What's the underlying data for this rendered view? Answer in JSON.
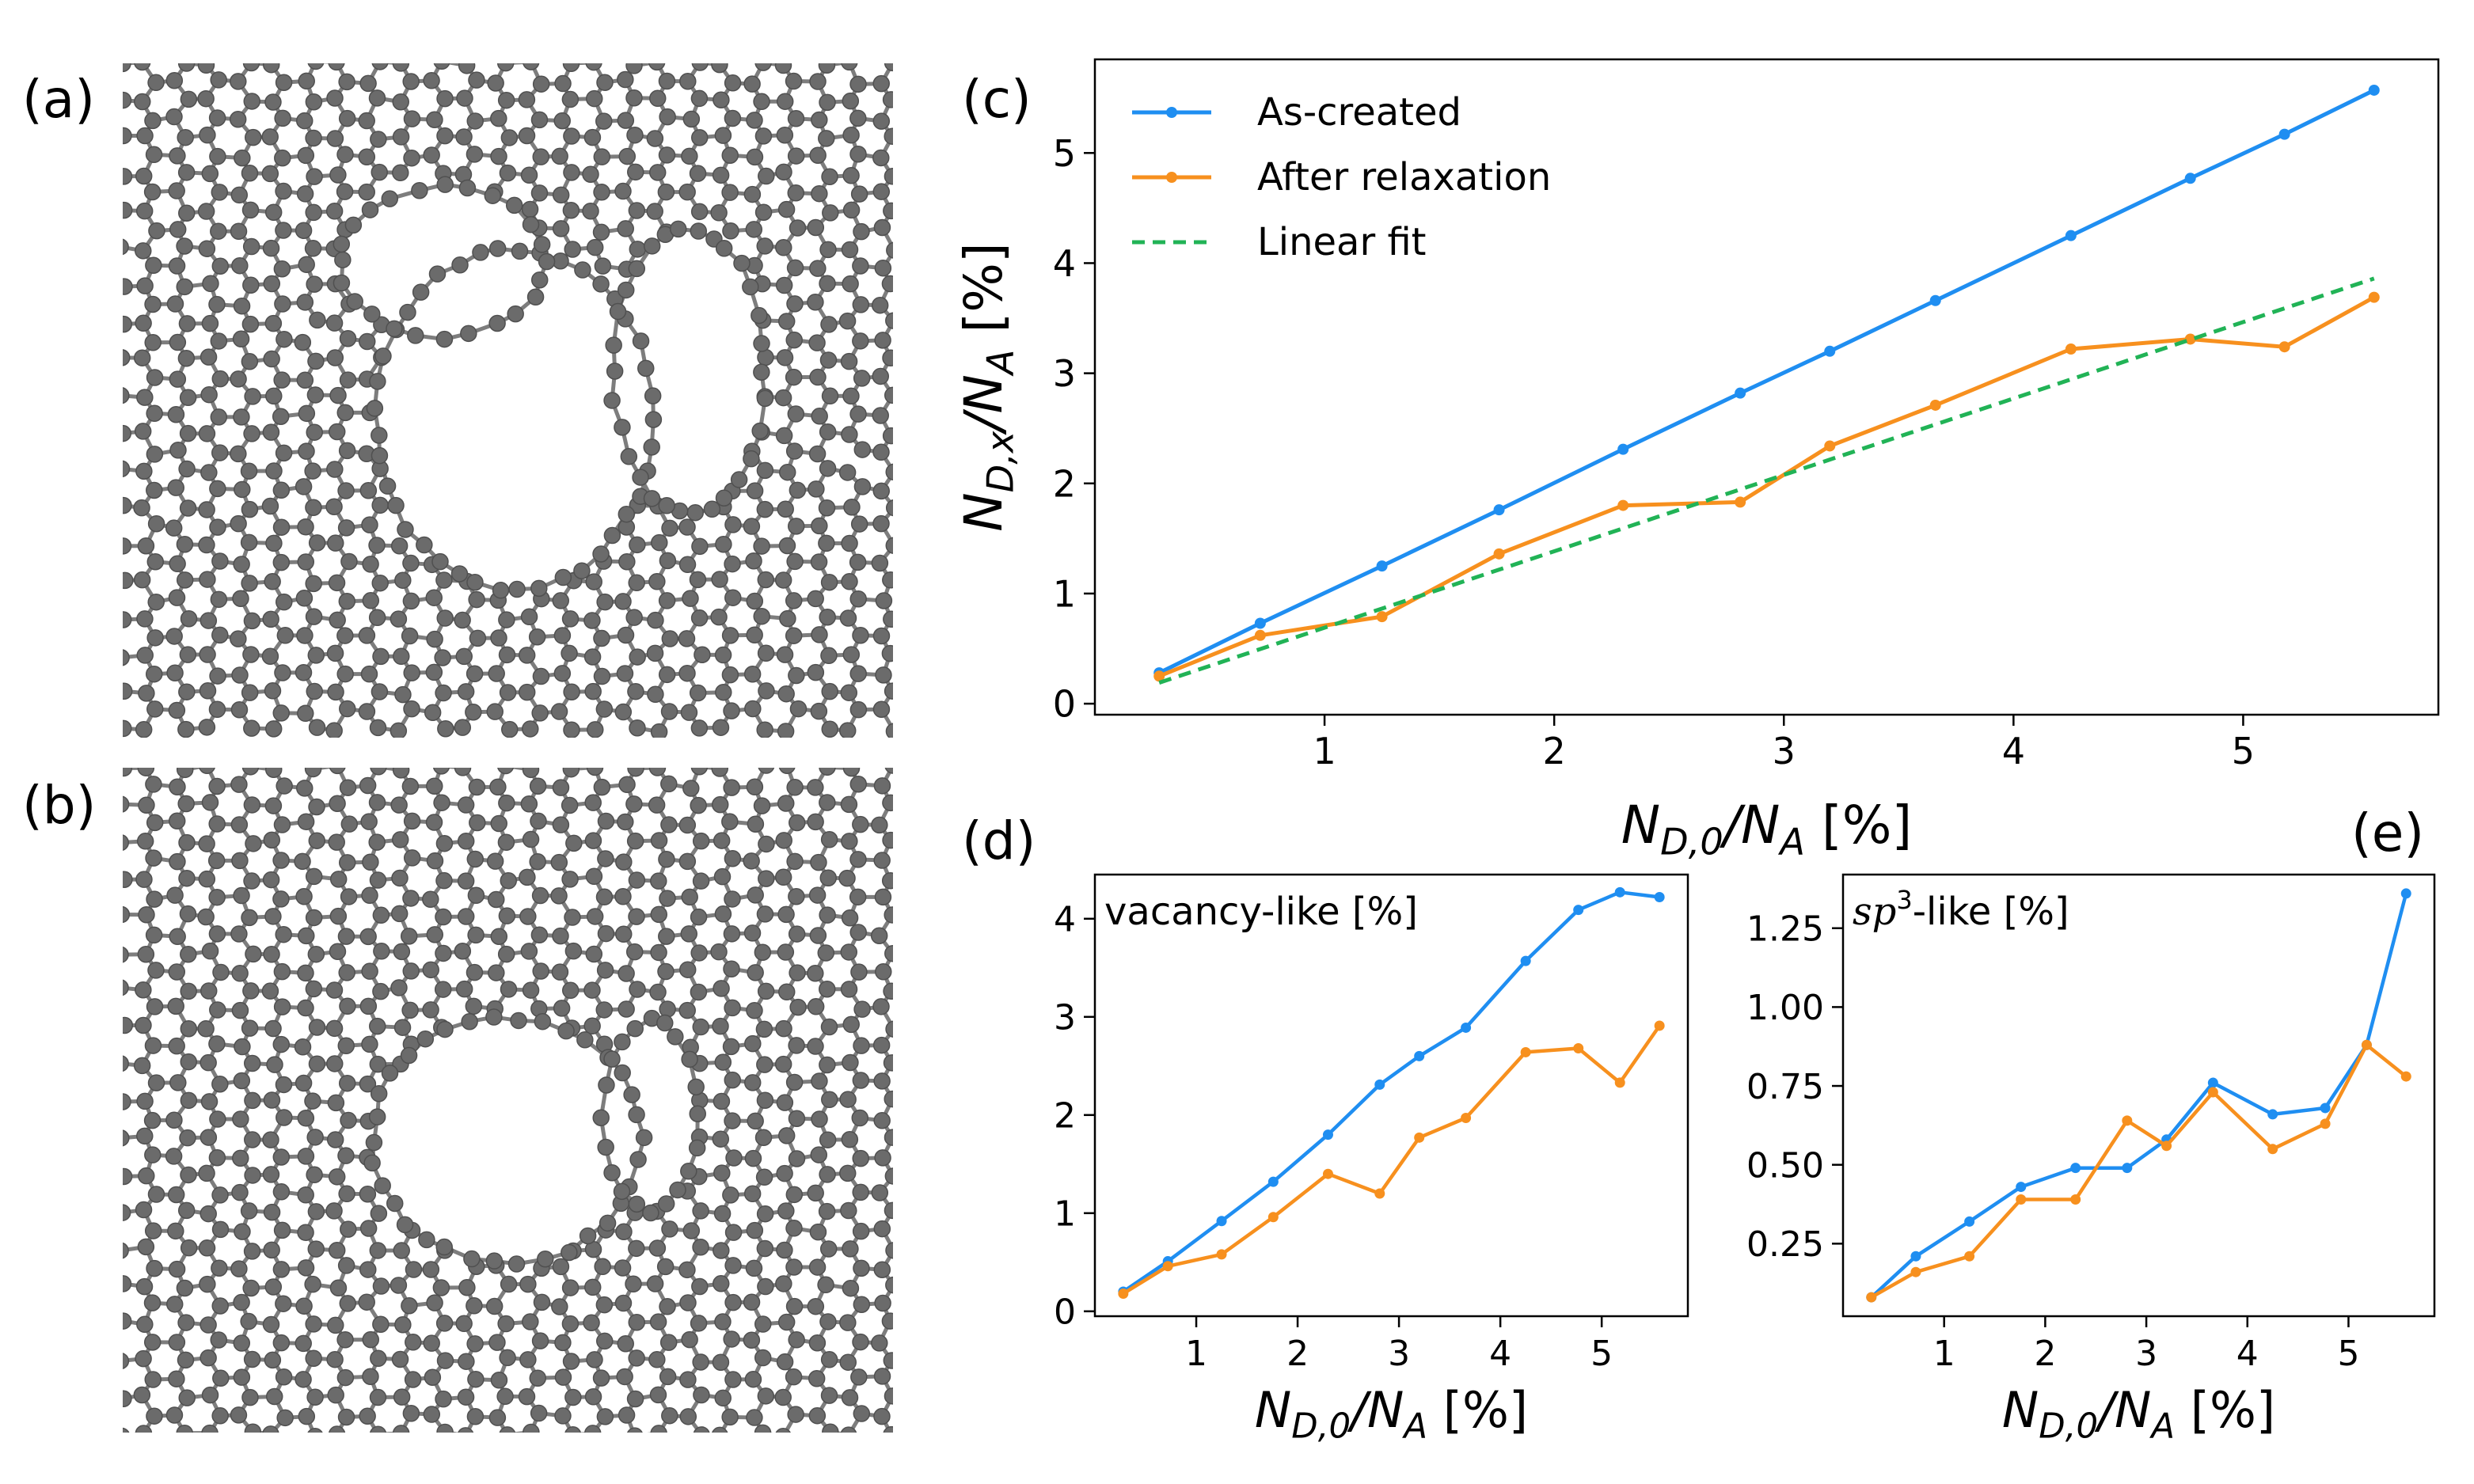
{
  "panels": {
    "a": {
      "label": "(a)"
    },
    "b": {
      "label": "(b)"
    },
    "c": {
      "label": "(c)"
    },
    "d": {
      "label": "(d)"
    },
    "e": {
      "label": "(e)"
    }
  },
  "colors": {
    "as_created": "#1f8ef1",
    "after_relaxation": "#f7901e",
    "linear_fit": "#21b356",
    "atom": "#6b6b6b",
    "bond": "#7d7d7d"
  },
  "chart_data": [
    {
      "id": "c",
      "type": "line",
      "xlabel": {
        "base": "N",
        "sub": "D,0",
        "over": "/N",
        "sub2": "A",
        "unit": " [%]"
      },
      "ylabel": {
        "base": "N",
        "sub": "D,x",
        "over": "/N",
        "sub2": "A",
        "unit": " [%]"
      },
      "xlim": [
        0.0,
        5.85
      ],
      "ylim": [
        -0.1,
        5.85
      ],
      "xticks": [
        1,
        2,
        3,
        4,
        5
      ],
      "yticks": [
        0,
        1,
        2,
        3,
        4,
        5
      ],
      "legend_position": "top-left",
      "grid": false,
      "series": [
        {
          "name": "As-created",
          "key": "as_created",
          "style": "line-marker",
          "x": [
            0.28,
            0.72,
            1.25,
            1.76,
            2.3,
            2.81,
            3.2,
            3.66,
            4.25,
            4.77,
            5.18,
            5.57
          ],
          "y": [
            0.28,
            0.73,
            1.25,
            1.76,
            2.31,
            2.82,
            3.2,
            3.66,
            4.25,
            4.77,
            5.17,
            5.57
          ]
        },
        {
          "name": "After relaxation",
          "key": "after_relaxation",
          "style": "line-marker",
          "x": [
            0.28,
            0.72,
            1.25,
            1.76,
            2.3,
            2.81,
            3.2,
            3.66,
            4.25,
            4.77,
            5.18,
            5.57
          ],
          "y": [
            0.25,
            0.62,
            0.79,
            1.36,
            1.8,
            1.83,
            2.34,
            2.71,
            3.22,
            3.31,
            3.24,
            3.69
          ]
        },
        {
          "name": "Linear fit",
          "key": "linear_fit",
          "style": "dashed",
          "x": [
            0.28,
            5.57
          ],
          "y": [
            0.19,
            3.86
          ]
        }
      ]
    },
    {
      "id": "d",
      "type": "line",
      "inset_title": "vacancy-like [%]",
      "xlabel": {
        "base": "N",
        "sub": "D,0",
        "over": "/N",
        "sub2": "A",
        "unit": " [%]"
      },
      "xlim": [
        0.0,
        5.85
      ],
      "ylim": [
        -0.05,
        4.45
      ],
      "xticks": [
        1,
        2,
        3,
        4,
        5
      ],
      "yticks": [
        0,
        1,
        2,
        3,
        4
      ],
      "series": [
        {
          "key": "as_created",
          "x": [
            0.28,
            0.72,
            1.25,
            1.76,
            2.3,
            2.81,
            3.2,
            3.66,
            4.25,
            4.77,
            5.18,
            5.57
          ],
          "y": [
            0.2,
            0.51,
            0.92,
            1.32,
            1.8,
            2.31,
            2.6,
            2.89,
            3.57,
            4.09,
            4.27,
            4.22
          ]
        },
        {
          "key": "after_relaxation",
          "x": [
            0.28,
            0.72,
            1.25,
            1.76,
            2.3,
            2.81,
            3.2,
            3.66,
            4.25,
            4.77,
            5.18,
            5.57
          ],
          "y": [
            0.18,
            0.46,
            0.58,
            0.96,
            1.4,
            1.2,
            1.77,
            1.97,
            2.64,
            2.68,
            2.33,
            2.91
          ]
        }
      ]
    },
    {
      "id": "e",
      "type": "line",
      "inset_title": "-like [%]",
      "inset_title_math": {
        "base": "sp",
        "sup": "3"
      },
      "xlabel": {
        "base": "N",
        "sub": "D,0",
        "over": "/N",
        "sub2": "A",
        "unit": " [%]"
      },
      "xlim": [
        0.0,
        5.85
      ],
      "ylim": [
        0.02,
        1.42
      ],
      "xticks": [
        1,
        2,
        3,
        4,
        5
      ],
      "yticks": [
        0.25,
        0.5,
        0.75,
        1.0,
        1.25
      ],
      "ytick_labels": [
        "0.25",
        "0.50",
        "0.75",
        "1.00",
        "1.25"
      ],
      "series": [
        {
          "key": "as_created",
          "x": [
            0.28,
            0.72,
            1.25,
            1.76,
            2.3,
            2.81,
            3.2,
            3.66,
            4.25,
            4.77,
            5.18,
            5.57
          ],
          "y": [
            0.08,
            0.21,
            0.32,
            0.43,
            0.49,
            0.49,
            0.58,
            0.76,
            0.66,
            0.68,
            0.88,
            1.36
          ]
        },
        {
          "key": "after_relaxation",
          "x": [
            0.28,
            0.72,
            1.25,
            1.76,
            2.3,
            2.81,
            3.2,
            3.66,
            4.25,
            4.77,
            5.18,
            5.57
          ],
          "y": [
            0.08,
            0.16,
            0.21,
            0.39,
            0.39,
            0.64,
            0.56,
            0.73,
            0.55,
            0.63,
            0.88,
            0.78
          ]
        }
      ]
    }
  ]
}
